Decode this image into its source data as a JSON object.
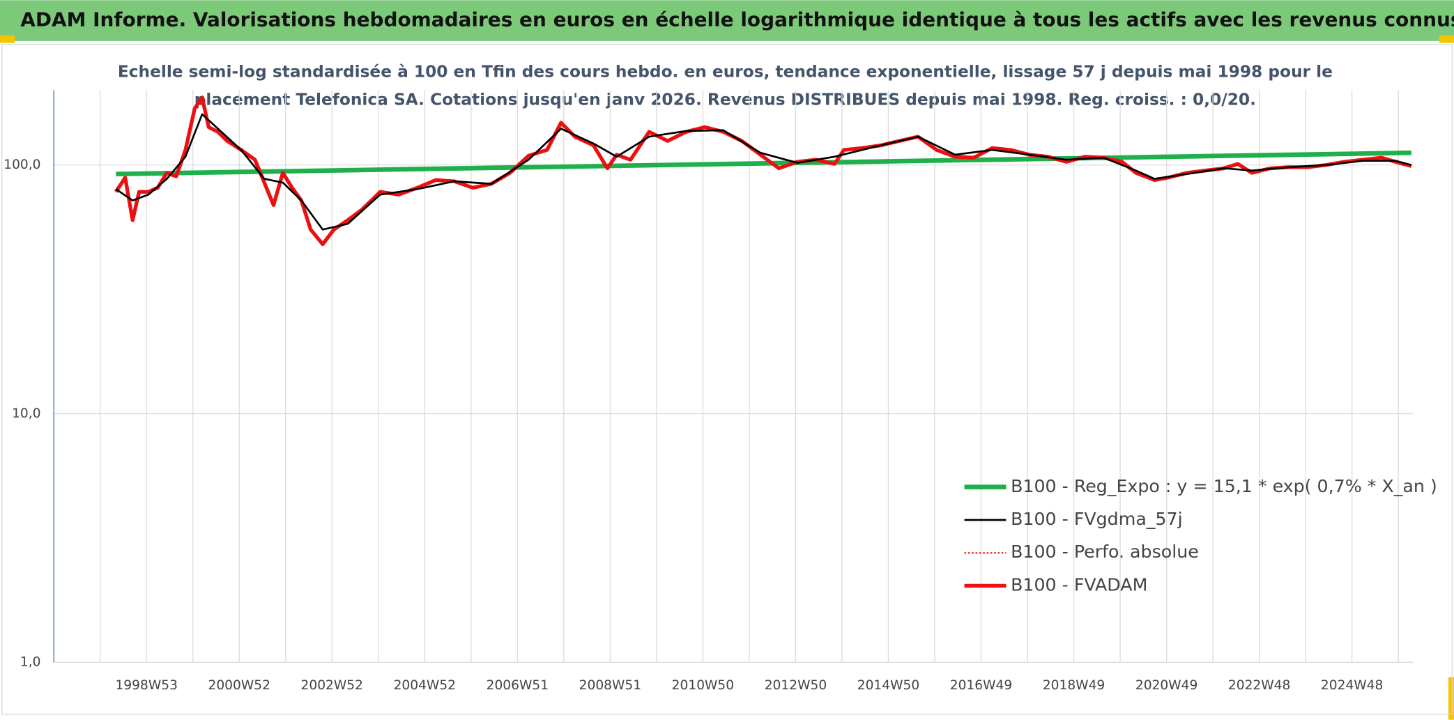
{
  "chart_data": {
    "type": "line",
    "title": "ADAM Informe. Valorisations hebdomadaires en euros en échelle logarithmique identique à tous les actifs avec les revenus connus distribués",
    "subtitle": [
      "Echelle semi-log standardisée à 100 en Tfin des cours hebdo. en euros, tendance exponentielle, lissage 57 j depuis mai 1998 pour le",
      "placement Telefonica SA. Cotations jusqu'en janv 2026. Revenus DISTRIBUES depuis mai 1998. Reg. croiss. : 0,0/20."
    ],
    "log_y": true,
    "grid": true,
    "legend": "lower right",
    "ylim": [
      1,
      200
    ],
    "yticks": [
      {
        "value": 1,
        "label": "1,0"
      },
      {
        "value": 10,
        "label": "10,0"
      },
      {
        "value": 100,
        "label": "100,0"
      }
    ],
    "xlim": [
      1997,
      2026.32
    ],
    "xticks": [
      {
        "value": 1999,
        "label": "1998W53"
      },
      {
        "value": 2001,
        "label": "2000W52"
      },
      {
        "value": 2003,
        "label": "2002W52"
      },
      {
        "value": 2005,
        "label": "2004W52"
      },
      {
        "value": 2007,
        "label": "2006W51"
      },
      {
        "value": 2009,
        "label": "2008W51"
      },
      {
        "value": 2011,
        "label": "2010W50"
      },
      {
        "value": 2013,
        "label": "2012W50"
      },
      {
        "value": 2015,
        "label": "2014W50"
      },
      {
        "value": 2017,
        "label": "2016W49"
      },
      {
        "value": 2019,
        "label": "2018W49"
      },
      {
        "value": 2021,
        "label": "2020W49"
      },
      {
        "value": 2023,
        "label": "2022W48"
      },
      {
        "value": 2025,
        "label": "2024W48"
      }
    ],
    "xminorticks": [
      1998,
      2000,
      2002,
      2004,
      2006,
      2008,
      2010,
      2012,
      2014,
      2016,
      2018,
      2020,
      2022,
      2024,
      2026
    ],
    "series": [
      {
        "name": "B100 - Reg_Expo : y = 15,1 * exp( 0,7% *  X_an )",
        "color": "#1fb04c",
        "style": "solid",
        "width": 5,
        "x": [
          1998.34,
          2026.28
        ],
        "values": [
          92,
          112
        ]
      },
      {
        "name": "B100 - FVgdma_57j",
        "color": "#000000",
        "style": "solid",
        "width": 2,
        "x": [
          1998.34,
          1998.7,
          1999.04,
          1999.44,
          1999.84,
          2000.2,
          2000.54,
          2001.04,
          2001.54,
          2001.94,
          2002.34,
          2002.8,
          2003.34,
          2004.04,
          2004.84,
          2005.64,
          2006.44,
          2007.24,
          2007.94,
          2008.64,
          2009.14,
          2009.84,
          2010.64,
          2011.44,
          2012.24,
          2013.04,
          2013.84,
          2014.84,
          2015.64,
          2016.44,
          2017.24,
          2018.04,
          2018.84,
          2019.64,
          2020.34,
          2020.74,
          2021.44,
          2022.24,
          2022.84,
          2023.64,
          2024.44,
          2025.24,
          2025.94,
          2026.28
        ],
        "values": [
          80,
          72,
          76,
          88,
          108,
          160,
          140,
          115,
          88,
          85,
          72,
          55,
          58,
          76,
          80,
          86,
          84,
          105,
          140,
          122,
          108,
          130,
          137,
          138,
          112,
          102,
          108,
          120,
          130,
          110,
          115,
          110,
          105,
          107,
          95,
          88,
          92,
          97,
          95,
          98,
          100,
          104,
          104,
          100
        ]
      },
      {
        "name": "B100 - Perfo. absolue",
        "color": "#e01010",
        "style": "dotted",
        "width": 1.5,
        "x": [
          1998.34,
          1998.54,
          1998.7,
          1998.84,
          1999.04,
          1999.24,
          1999.44,
          1999.64,
          1999.84,
          2000.04,
          2000.2,
          2000.34,
          2000.54,
          2000.74,
          2001.04,
          2001.34,
          2001.54,
          2001.74,
          2001.94,
          2002.14,
          2002.34,
          2002.54,
          2002.8,
          2003.04,
          2003.34,
          2003.64,
          2004.04,
          2004.44,
          2004.84,
          2005.24,
          2005.64,
          2006.04,
          2006.44,
          2006.84,
          2007.24,
          2007.64,
          2007.94,
          2008.24,
          2008.64,
          2008.94,
          2009.14,
          2009.44,
          2009.84,
          2010.24,
          2010.64,
          2011.04,
          2011.44,
          2011.84,
          2012.24,
          2012.64,
          2013.04,
          2013.44,
          2013.84,
          2014.04,
          2014.44,
          2014.84,
          2015.24,
          2015.64,
          2016.04,
          2016.44,
          2016.84,
          2017.24,
          2017.64,
          2018.04,
          2018.44,
          2018.84,
          2019.24,
          2019.64,
          2020.04,
          2020.34,
          2020.74,
          2021.04,
          2021.44,
          2021.84,
          2022.24,
          2022.54,
          2022.84,
          2023.24,
          2023.64,
          2024.04,
          2024.44,
          2024.84,
          2025.24,
          2025.64,
          2025.94,
          2026.28
        ],
        "values": [
          78,
          89,
          60,
          78,
          78,
          81,
          93,
          90,
          115,
          169,
          187,
          142,
          136,
          125,
          115,
          105,
          85,
          69,
          93,
          81,
          72,
          55,
          48,
          55,
          60,
          66,
          78,
          76,
          81,
          87,
          86,
          81,
          84,
          93,
          109,
          115,
          148,
          130,
          120,
          97,
          110,
          105,
          136,
          125,
          136,
          142,
          136,
          125,
          110,
          97,
          103,
          105,
          101,
          115,
          117,
          120,
          125,
          130,
          115,
          108,
          107,
          117,
          115,
          110,
          108,
          103,
          108,
          107,
          103,
          93,
          87,
          89,
          93,
          95,
          97,
          101,
          93,
          97,
          98,
          98,
          100,
          103,
          105,
          107,
          103,
          99
        ]
      },
      {
        "name": "B100 - FVADAM",
        "color": "#ee1111",
        "style": "solid",
        "width": 4,
        "x": [
          1998.34,
          1998.54,
          1998.7,
          1998.84,
          1999.04,
          1999.24,
          1999.44,
          1999.64,
          1999.84,
          2000.04,
          2000.2,
          2000.34,
          2000.54,
          2000.74,
          2001.04,
          2001.34,
          2001.54,
          2001.74,
          2001.94,
          2002.14,
          2002.34,
          2002.54,
          2002.8,
          2003.04,
          2003.34,
          2003.64,
          2004.04,
          2004.44,
          2004.84,
          2005.24,
          2005.64,
          2006.04,
          2006.44,
          2006.84,
          2007.24,
          2007.64,
          2007.94,
          2008.24,
          2008.64,
          2008.94,
          2009.14,
          2009.44,
          2009.84,
          2010.24,
          2010.64,
          2011.04,
          2011.44,
          2011.84,
          2012.24,
          2012.64,
          2013.04,
          2013.44,
          2013.84,
          2014.04,
          2014.44,
          2014.84,
          2015.24,
          2015.64,
          2016.04,
          2016.44,
          2016.84,
          2017.24,
          2017.64,
          2018.04,
          2018.44,
          2018.84,
          2019.24,
          2019.64,
          2020.04,
          2020.34,
          2020.74,
          2021.04,
          2021.44,
          2021.84,
          2022.24,
          2022.54,
          2022.84,
          2023.24,
          2023.64,
          2024.04,
          2024.44,
          2024.84,
          2025.24,
          2025.64,
          2025.94,
          2026.28
        ],
        "values": [
          78,
          89,
          60,
          78,
          78,
          81,
          93,
          90,
          115,
          169,
          187,
          142,
          136,
          125,
          115,
          105,
          85,
          69,
          93,
          81,
          72,
          55,
          48,
          55,
          60,
          66,
          78,
          76,
          81,
          87,
          86,
          81,
          84,
          93,
          109,
          115,
          148,
          130,
          120,
          97,
          110,
          105,
          136,
          125,
          136,
          142,
          136,
          125,
          110,
          97,
          103,
          105,
          101,
          115,
          117,
          120,
          125,
          130,
          115,
          108,
          107,
          117,
          115,
          110,
          108,
          103,
          108,
          107,
          103,
          93,
          87,
          89,
          93,
          95,
          97,
          101,
          93,
          97,
          98,
          98,
          100,
          103,
          105,
          107,
          103,
          99
        ]
      }
    ]
  }
}
